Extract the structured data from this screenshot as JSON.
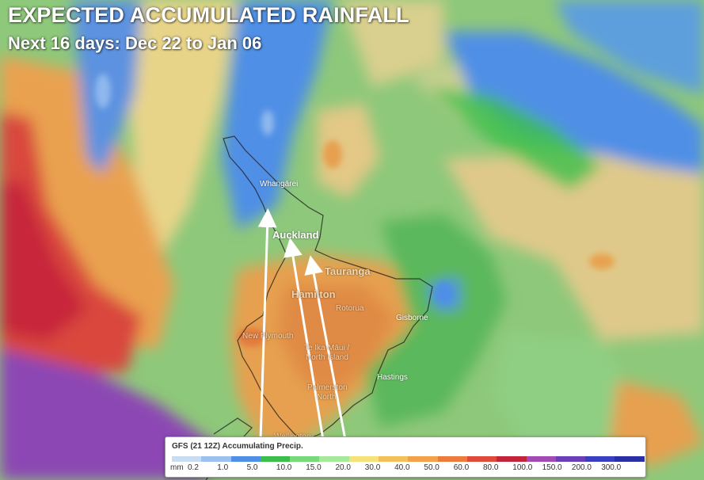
{
  "header": {
    "title": "EXPECTED ACCUMULATED RAINFALL",
    "subtitle": "Next 16 days: Dec 22 to Jan 06"
  },
  "places": {
    "whangarei": "Whangārei",
    "auckland": "Auckland",
    "tauranga": "Tauranga",
    "hamilton": "Hamilton",
    "rotorua": "Rotorua",
    "gisborne": "Gisborne",
    "new_plymouth": "New Plymouth",
    "te_ika_line1": "Te Ika-Māui /",
    "te_ika_line2": "North Island",
    "hastings": "Hastings",
    "palmerston_line1": "Palmerston",
    "palmerston_line2": "North",
    "wellington": "Wellington"
  },
  "legend": {
    "title": "GFS (21 12Z) Accumulating Precip.",
    "unit": "mm",
    "stops": [
      "0.2",
      "1.0",
      "5.0",
      "10.0",
      "15.0",
      "20.0",
      "30.0",
      "40.0",
      "50.0",
      "60.0",
      "80.0",
      "100.0",
      "150.0",
      "200.0",
      "300.0"
    ],
    "colors": [
      "#c9dcf2",
      "#9cc1ee",
      "#4f8fe6",
      "#3bbf4a",
      "#78d97a",
      "#a6e89c",
      "#f3e37a",
      "#f4c05a",
      "#f3a14a",
      "#ee7b3e",
      "#e04a3a",
      "#c2253a",
      "#a24bb5",
      "#6b3fb8",
      "#3a3fc2",
      "#2b2fa6"
    ]
  },
  "icons": {
    "arrow": "white-arrow-icon"
  }
}
